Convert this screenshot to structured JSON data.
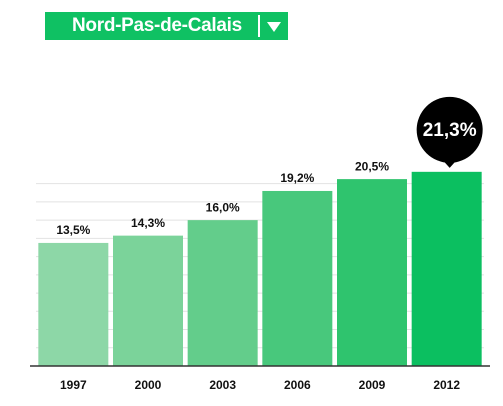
{
  "selector": "Nord-Pas-de-Calais",
  "chart_data": {
    "type": "bar",
    "categories": [
      "1997",
      "2000",
      "2003",
      "2006",
      "2009",
      "2012"
    ],
    "values": [
      13.5,
      14.3,
      16.0,
      19.2,
      20.5,
      21.3
    ],
    "value_labels": [
      "13,5%",
      "14,3%",
      "16,0%",
      "19,2%",
      "20,5%",
      "21,3%"
    ],
    "colors": [
      "#8dd7a7",
      "#7bd39a",
      "#63cd8b",
      "#48c87c",
      "#2fc46e",
      "#0bbf60"
    ],
    "highlight": 5,
    "ylim": [
      0,
      21.5
    ],
    "yticks": [
      0,
      2,
      4,
      6,
      8,
      10,
      12,
      14,
      16,
      18,
      20
    ],
    "grid": true
  }
}
